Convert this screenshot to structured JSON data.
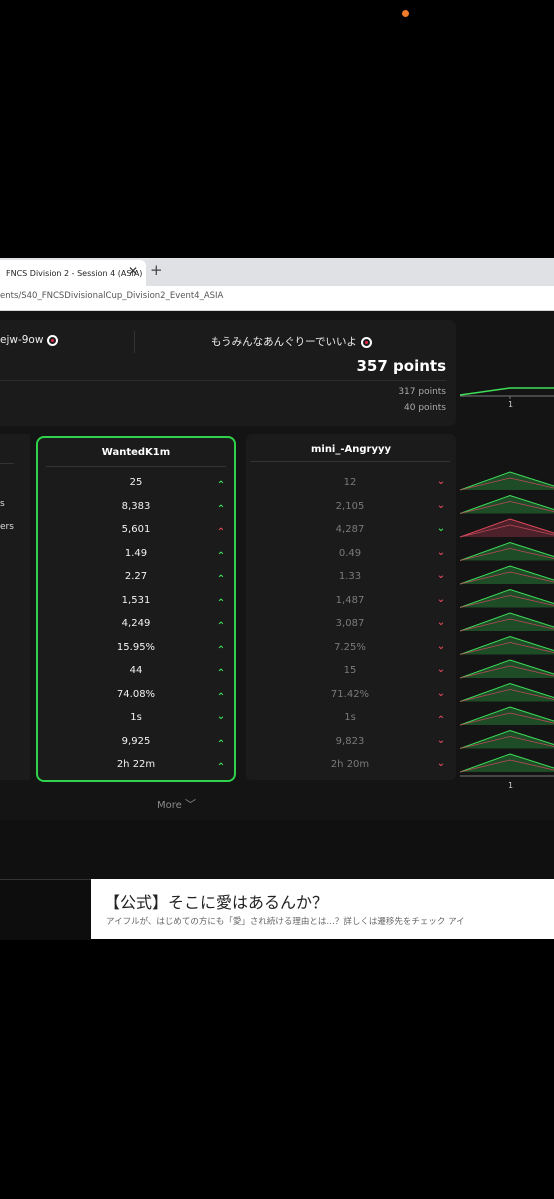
{
  "browser": {
    "tab_title": "FNCS Division 2 - Session 4 (ASIA)",
    "tab_close": "✕",
    "new_tab": "+",
    "address": "ents/S40_FNCSDivisionalCup_Division2_Event4_ASIA"
  },
  "header": {
    "player_left": "ejw-9ow",
    "player_right": "もうみんなあんぐりーでいいよ",
    "points_main": "357 points",
    "points_a": "317 points",
    "points_b": "40 points"
  },
  "left_labels": [
    "s",
    "ers"
  ],
  "wanted": {
    "name": "WantedK1m",
    "values": [
      "25",
      "8,383",
      "5,601",
      "1.49",
      "2.27",
      "1,531",
      "4,249",
      "15.95%",
      "44",
      "74.08%",
      "1s",
      "9,925",
      "2h 22m"
    ],
    "arrows": [
      "up",
      "up",
      "up-red",
      "up",
      "up",
      "up",
      "up",
      "up",
      "up",
      "up",
      "down-green",
      "up",
      "up"
    ]
  },
  "mini": {
    "name": "mini_-Angryyy",
    "values": [
      "12",
      "2,105",
      "4,287",
      "0.49",
      "1.33",
      "1,487",
      "3,087",
      "7.25%",
      "15",
      "71.42%",
      "1s",
      "9,823",
      "2h 20m"
    ],
    "arrows": [
      "down",
      "down",
      "down-green",
      "down",
      "down",
      "down",
      "down",
      "down",
      "down",
      "down",
      "up-red",
      "down",
      "down"
    ]
  },
  "more_label": "More",
  "axis_tick": "1",
  "ad": {
    "title": "【公式】そこに愛はあるんか？",
    "subtitle": "アイフルが、はじめての方にも「愛」され続ける理由とは…？詳しくは遷移先をチェック アイ"
  },
  "colors": {
    "accent_green": "#2fd24a",
    "down_red": "#e0485a",
    "status_dot": "#f07a2a"
  }
}
